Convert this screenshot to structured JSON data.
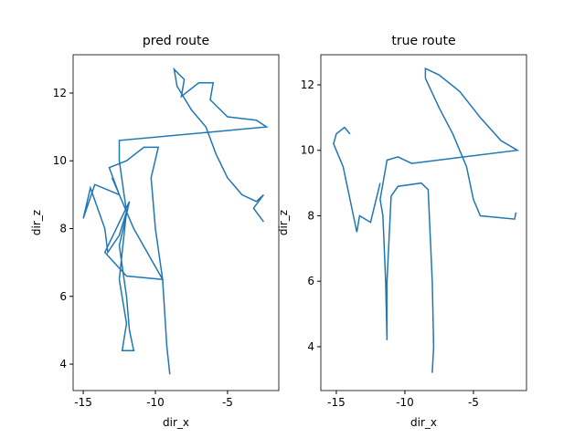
{
  "chart_data": [
    {
      "type": "line",
      "title": "pred route",
      "x_label": "dir_x",
      "y_label": "dir_z",
      "xlim": [
        -15.7,
        -1.45
      ],
      "ylim": [
        3.22,
        13.13
      ],
      "xticks": [
        -15,
        -10,
        -5
      ],
      "yticks": [
        4,
        6,
        8,
        10,
        12
      ],
      "series": [
        {
          "color": "#1f77b4",
          "x": [
            -9.0,
            -9.2,
            -9.5,
            -10.0,
            -10.3,
            -9.8,
            -10.8,
            -12.0,
            -13.2,
            -12.5,
            -14.2,
            -15.0,
            -14.5,
            -13.5,
            -13.3,
            -12.5,
            -12.0,
            -13.0,
            -11.5,
            -9.5,
            -12.0,
            -13.5,
            -11.8,
            -12.5,
            -12.0,
            -11.8,
            -11.5,
            -12.3,
            -12.0,
            -12.5,
            -12.0,
            -12.5,
            -12.5,
            -2.3,
            -3.0,
            -5.0,
            -6.2,
            -6.0,
            -7.0,
            -8.2,
            -8.0,
            -8.7,
            -8.5,
            -7.5,
            -6.5,
            -5.8,
            -5.0,
            -4.0,
            -3.0,
            -2.5,
            -3.2,
            -2.5
          ],
          "values": [
            3.7,
            4.5,
            6.5,
            8.0,
            9.5,
            10.4,
            10.4,
            10.0,
            9.8,
            9.0,
            9.3,
            8.3,
            9.2,
            8.0,
            7.3,
            7.8,
            8.5,
            9.5,
            8.0,
            6.5,
            6.6,
            7.3,
            8.8,
            7.5,
            6.0,
            5.0,
            4.4,
            4.4,
            5.2,
            6.5,
            8.5,
            10.0,
            10.6,
            11.0,
            11.2,
            11.3,
            11.8,
            12.3,
            12.3,
            11.9,
            12.4,
            12.7,
            12.2,
            11.5,
            11.0,
            10.2,
            9.5,
            9.0,
            8.8,
            9.0,
            8.6,
            8.2
          ]
        }
      ]
    },
    {
      "type": "line",
      "title": "true route",
      "x_label": "dir_x",
      "y_label": "dir_z",
      "xlim": [
        -16.13,
        -1.13
      ],
      "ylim": [
        2.66,
        12.92
      ],
      "xticks": [
        -15,
        -10,
        -5
      ],
      "yticks": [
        4,
        6,
        8,
        10,
        12
      ],
      "series": [
        {
          "color": "#1f77b4",
          "x": [
            -8.0,
            -7.9,
            -8.0,
            -8.3,
            -8.8,
            -10.5,
            -11.0,
            -11.3,
            -11.3,
            -11.4,
            -11.6,
            -11.8,
            -11.3,
            -10.5,
            -9.5,
            -1.8,
            -3.0,
            -4.5,
            -6.0,
            -7.5,
            -8.5,
            -8.5,
            -7.5,
            -6.5,
            -5.5,
            -5.0,
            -4.5,
            -2.0,
            -1.9,
            null,
            -11.8,
            -12.5,
            -13.3,
            -13.5,
            -14.0,
            -14.5,
            -15.2,
            -15.0,
            -14.4,
            -14.0
          ],
          "values": [
            3.2,
            4.0,
            6.0,
            8.8,
            9.0,
            8.9,
            8.6,
            6.0,
            4.2,
            6.0,
            8.0,
            8.5,
            9.7,
            9.8,
            9.6,
            10.0,
            10.3,
            11.0,
            11.8,
            12.3,
            12.5,
            12.2,
            11.3,
            10.5,
            9.5,
            8.5,
            8.0,
            7.9,
            8.1,
            null,
            9.0,
            7.8,
            8.0,
            7.5,
            8.5,
            9.5,
            10.2,
            10.5,
            10.7,
            10.5
          ]
        }
      ]
    }
  ]
}
